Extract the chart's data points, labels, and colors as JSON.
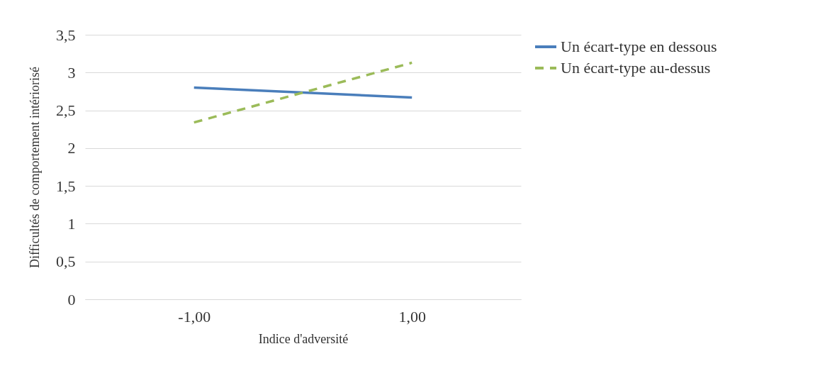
{
  "chart_data": {
    "type": "line",
    "xlabel": "Indice d'adversité",
    "ylabel": "Difficultés de comportement intériorisé",
    "categories": [
      "-1,00",
      "1,00"
    ],
    "series": [
      {
        "name": "Un écart-type en dessous",
        "color": "#4a7ebb",
        "line_style": "solid",
        "values": [
          2.8,
          2.67
        ]
      },
      {
        "name": "Un écart-type au-dessus",
        "color": "#9bbb59",
        "line_style": "dashed",
        "values": [
          2.34,
          3.13
        ]
      }
    ],
    "ylim": [
      0,
      3.5
    ],
    "yticks": [
      0,
      {
        "value": 0.5,
        "label": "0,5"
      },
      1,
      {
        "value": 1.5,
        "label": "1,5"
      },
      2,
      {
        "value": 2.5,
        "label": "2,5"
      },
      3,
      {
        "value": 3.5,
        "label": "3,5"
      }
    ],
    "grid": "y",
    "legend": "right",
    "marker": "none"
  }
}
